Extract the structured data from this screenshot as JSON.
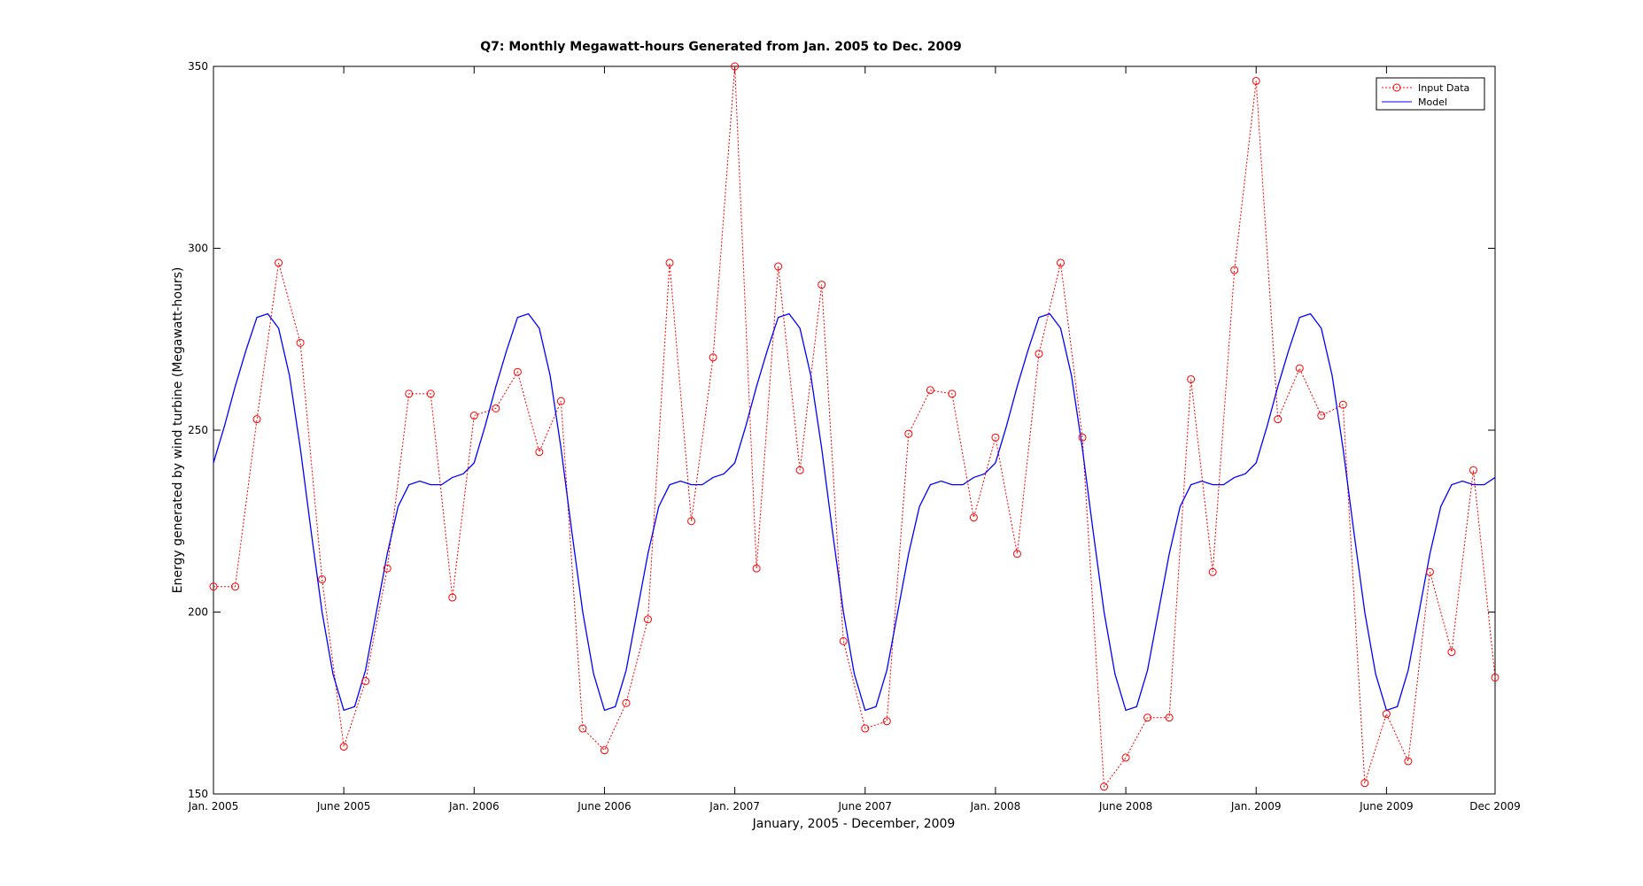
{
  "chart_data": {
    "type": "line",
    "title": "Q7: Monthly Megawatt-hours Generated from Jan. 2005 to Dec. 2009",
    "xlabel": "January, 2005 - December, 2009",
    "ylabel": "Energy generated by wind turbine (Megawatt-hours)",
    "xlim": [
      1,
      60
    ],
    "ylim": [
      150,
      350
    ],
    "yticks": [
      150,
      200,
      250,
      300,
      350
    ],
    "xticks": [
      {
        "x": 1,
        "label": "Jan. 2005"
      },
      {
        "x": 7,
        "label": "June 2005"
      },
      {
        "x": 13,
        "label": "Jan. 2006"
      },
      {
        "x": 19,
        "label": "June 2006"
      },
      {
        "x": 25,
        "label": "Jan. 2007"
      },
      {
        "x": 31,
        "label": "June 2007"
      },
      {
        "x": 37,
        "label": "Jan. 2008"
      },
      {
        "x": 43,
        "label": "June 2008"
      },
      {
        "x": 49,
        "label": "Jan. 2009"
      },
      {
        "x": 55,
        "label": "June 2009"
      },
      {
        "x": 60,
        "label": "Dec 2009"
      }
    ],
    "grid": false,
    "legend_position": "top-right",
    "series": [
      {
        "name": "Input Data",
        "style": "dotted-circles",
        "color": "#ff0000",
        "x": [
          1,
          2,
          3,
          4,
          5,
          6,
          7,
          8,
          9,
          10,
          11,
          12,
          13,
          14,
          15,
          16,
          17,
          18,
          19,
          20,
          21,
          22,
          23,
          24,
          25,
          26,
          27,
          28,
          29,
          30,
          31,
          32,
          33,
          34,
          35,
          36,
          37,
          38,
          39,
          40,
          41,
          42,
          43,
          44,
          45,
          46,
          47,
          48,
          49,
          50,
          51,
          52,
          53,
          54,
          55,
          56,
          57,
          58,
          59,
          60
        ],
        "values": [
          207,
          207,
          253,
          296,
          274,
          209,
          163,
          181,
          212,
          260,
          260,
          204,
          254,
          256,
          266,
          244,
          258,
          168,
          162,
          175,
          198,
          296,
          225,
          270,
          350,
          212,
          295,
          239,
          290,
          192,
          168,
          170,
          249,
          261,
          260,
          226,
          248,
          216,
          271,
          296,
          248,
          152,
          160,
          171,
          171,
          264,
          211,
          294,
          346,
          253,
          267,
          254,
          257,
          153,
          172,
          159,
          211,
          189,
          239,
          182
        ]
      },
      {
        "name": "Model",
        "style": "solid",
        "color": "#0000ff",
        "x": [
          1,
          1.5,
          2,
          2.5,
          3,
          3.5,
          4,
          4.5,
          5,
          5.5,
          6,
          6.5,
          7,
          7.5,
          8,
          8.5,
          9,
          9.5,
          10,
          10.5,
          11,
          11.5,
          12,
          12.5,
          13
        ],
        "values": [
          241,
          251,
          262,
          272,
          281,
          282,
          278,
          265,
          245,
          222,
          200,
          183,
          173,
          174,
          184,
          200,
          216,
          229,
          235,
          236,
          235,
          235,
          237,
          238,
          241
        ],
        "periodic_months": 12
      }
    ]
  }
}
